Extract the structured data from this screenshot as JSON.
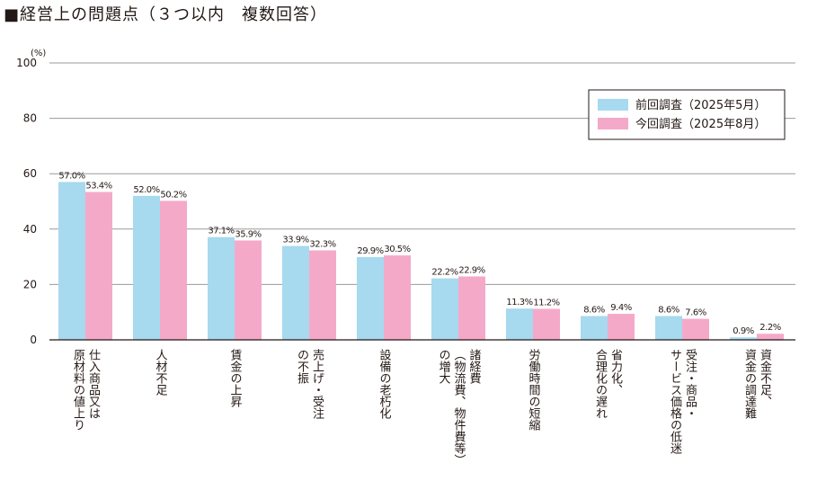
{
  "chart_title": "■経営上の問題点（３つ以内　複数回答）",
  "chart_data": {
    "type": "bar",
    "title": "■経営上の問題点（３つ以内　複数回答）",
    "unit": "(%)",
    "ylim": [
      0,
      100
    ],
    "yticks": [
      "0",
      "20",
      "40",
      "60",
      "80",
      "100"
    ],
    "grid": true,
    "legend_position": "top-right",
    "categories": [
      [
        "仕入商品又は",
        "原材料の値上り"
      ],
      [
        "人材不足"
      ],
      [
        "賃金の上昇"
      ],
      [
        "売上げ・受注",
        "の不振"
      ],
      [
        "設備の老朽化"
      ],
      [
        "諸経費",
        "（物流費、物件費等）",
        "の増大"
      ],
      [
        "労働時間の短縮"
      ],
      [
        "省力化、",
        "合理化の遅れ"
      ],
      [
        "受注・商品・",
        "サービス価格の低迷"
      ],
      [
        "資金不足、",
        "資金の調達難"
      ]
    ],
    "series": [
      {
        "name": "前回調査（2025年5月）",
        "color": "#a7d9ef",
        "values": [
          57.0,
          52.0,
          37.1,
          33.9,
          29.9,
          22.2,
          11.3,
          8.6,
          8.6,
          0.9
        ],
        "labels": [
          "57.0%",
          "52.0%",
          "37.1%",
          "33.9%",
          "29.9%",
          "22.2%",
          "11.3%",
          "8.6%",
          "8.6%",
          "0.9%"
        ]
      },
      {
        "name": "今回調査（2025年8月）",
        "color": "#f5a9c9",
        "values": [
          53.4,
          50.2,
          35.9,
          32.3,
          30.5,
          22.9,
          11.2,
          9.4,
          7.6,
          2.2
        ],
        "labels": [
          "53.4%",
          "50.2%",
          "35.9%",
          "32.3%",
          "30.5%",
          "22.9%",
          "11.2%",
          "9.4%",
          "7.6%",
          "2.2%"
        ]
      }
    ]
  }
}
